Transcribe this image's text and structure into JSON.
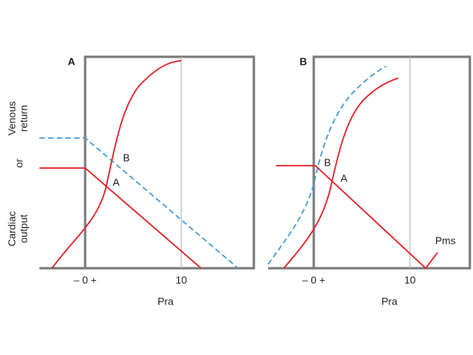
{
  "y_label": {
    "lines": [
      "Venous",
      "return",
      "or",
      "Cardiac",
      "output"
    ]
  },
  "panels": [
    {
      "label": "A",
      "ticks": [
        "– 0 +",
        "10"
      ],
      "x_label": "Pra",
      "point_labels": [
        "B",
        "A"
      ]
    },
    {
      "label": "B",
      "ticks": [
        "– 0 +",
        "10"
      ],
      "x_label": "Pra",
      "point_labels": [
        "B",
        "A",
        "Pms"
      ]
    }
  ]
}
